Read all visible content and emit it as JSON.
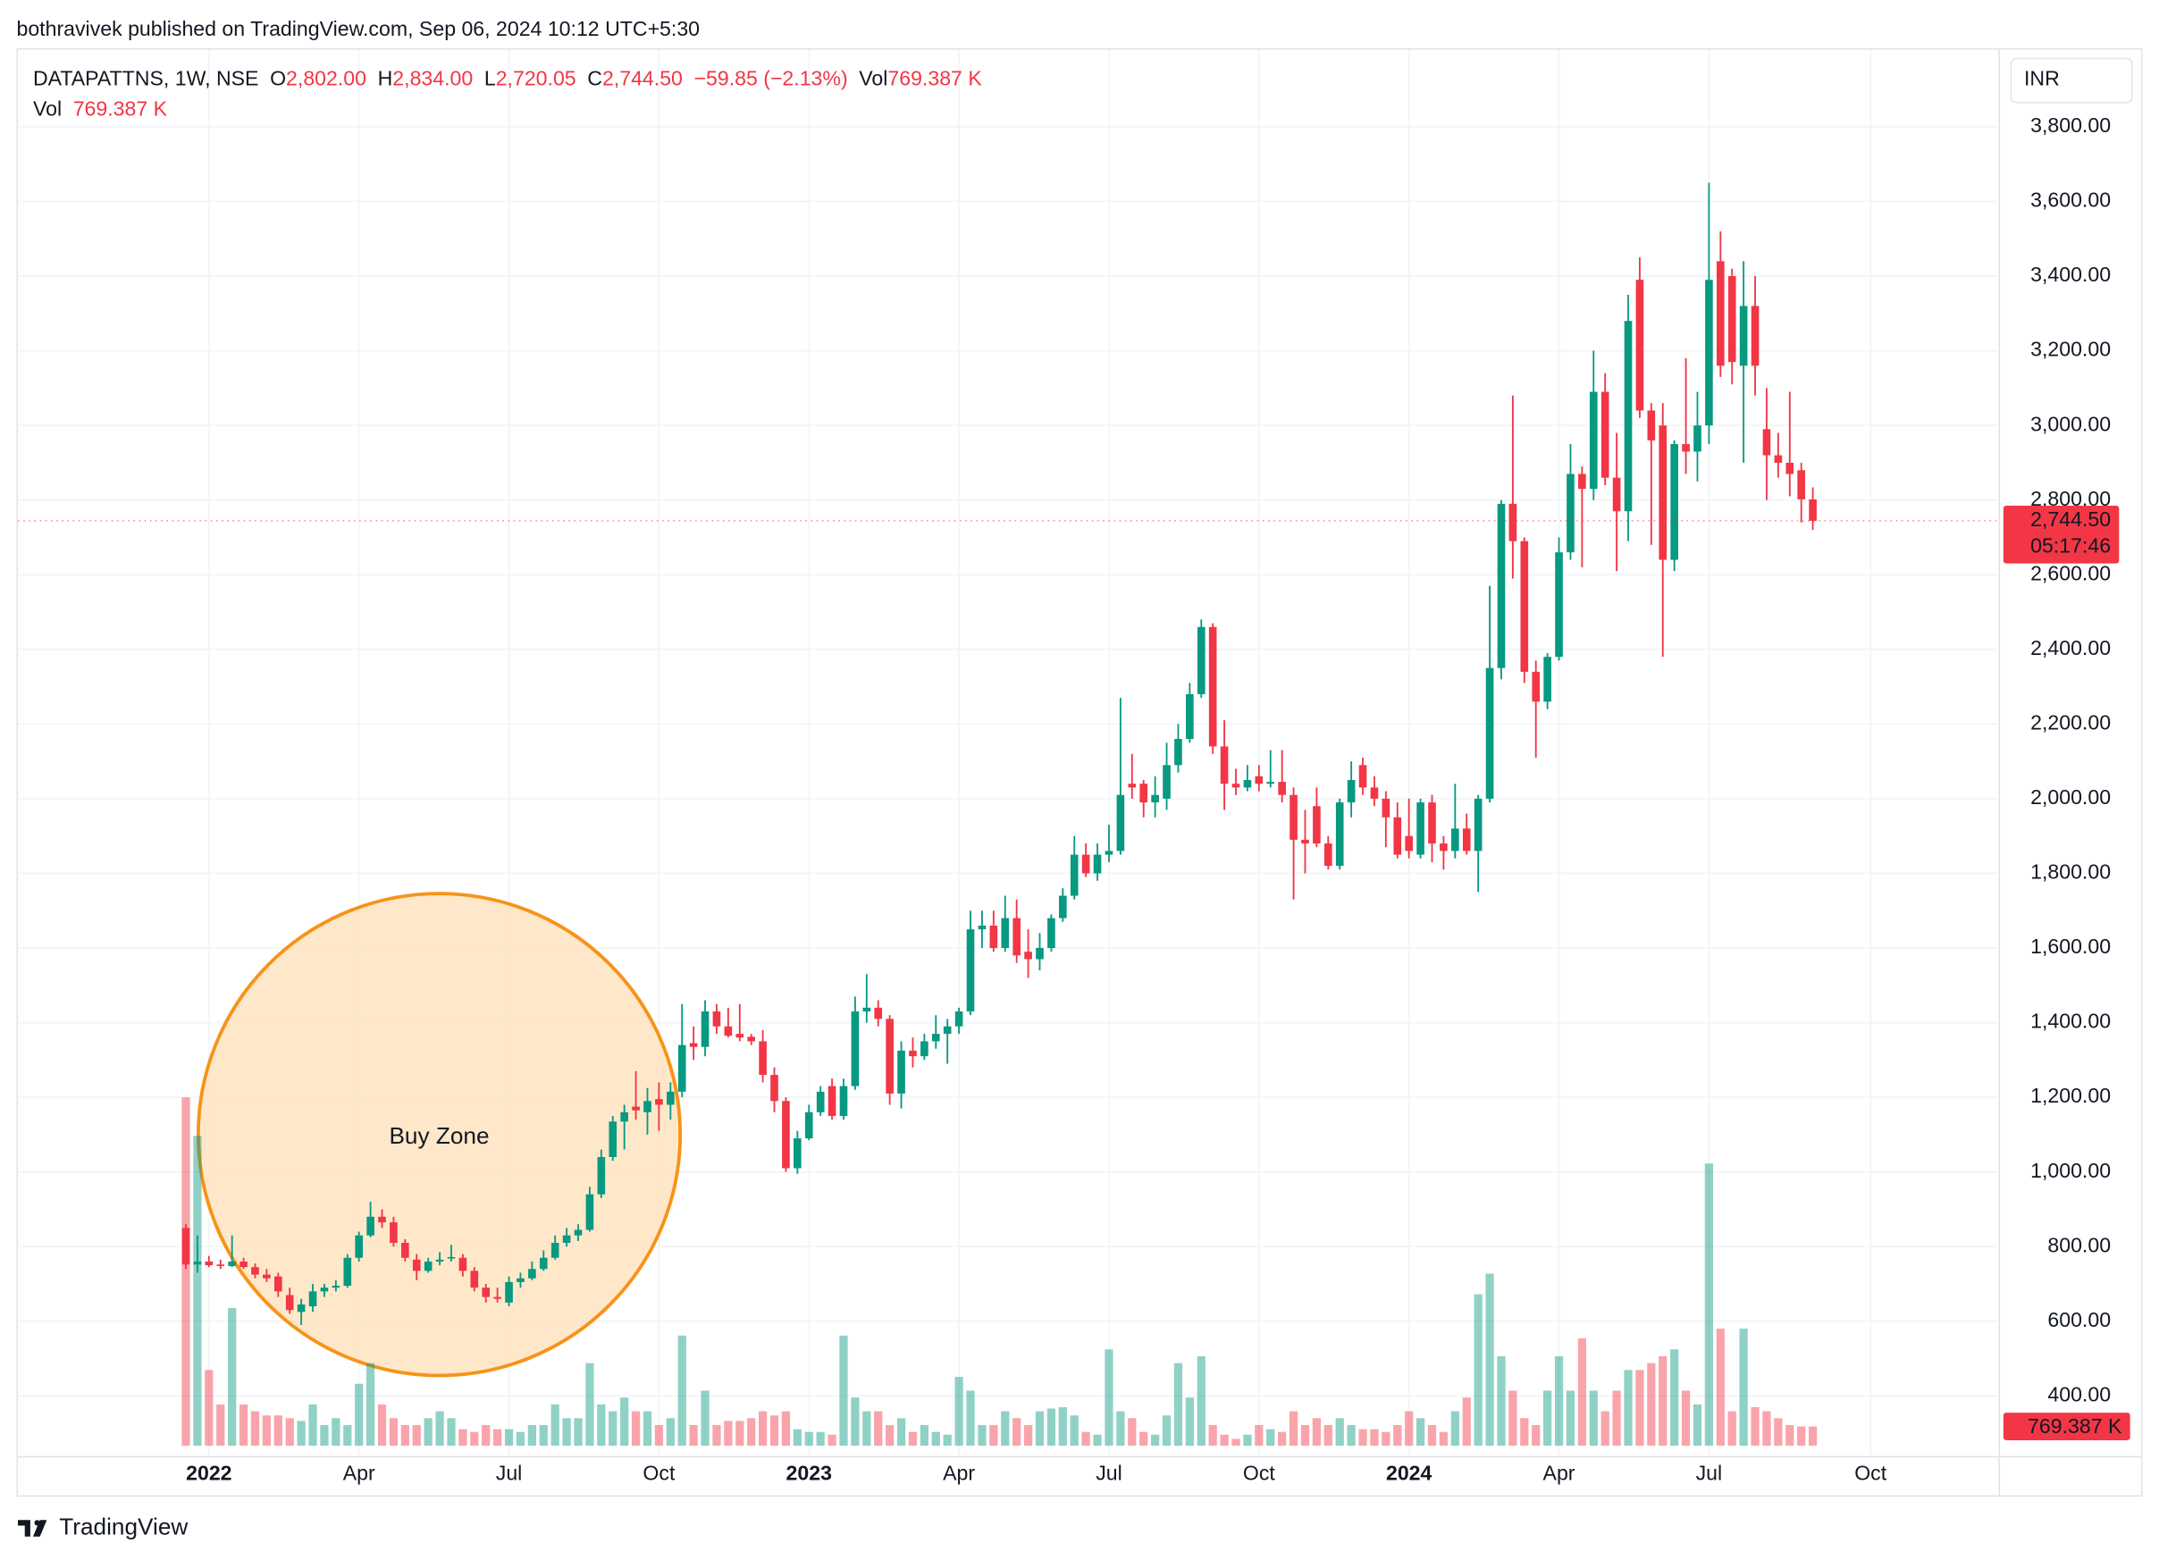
{
  "header": {
    "text": "bothravivek published on TradingView.com, Sep 06, 2024 10:12 UTC+5:30"
  },
  "legend": {
    "symbol": "DATAPATTNS, 1W, NSE",
    "fields": [
      {
        "key": "O",
        "text": "2,802.00"
      },
      {
        "key": "H",
        "text": "2,834.00"
      },
      {
        "key": "L",
        "text": "2,720.05"
      },
      {
        "key": "C",
        "text": "2,744.50"
      }
    ],
    "change": "−59.85 (−2.13%)",
    "volume_key": "Vol",
    "volume_text": "769.387 K"
  },
  "currency": "INR",
  "footer": {
    "brand": "TradingView"
  },
  "chart_data": {
    "type": "candlestick",
    "title": "DATAPATTNS, 1W, NSE",
    "annotation": "Buy Zone",
    "up_color": "#089981",
    "down_color": "#f23645",
    "annotation_color": "#f7931a",
    "grid": true,
    "ylim": [
      237,
      4007
    ],
    "yticks": [
      {
        "value": 400,
        "label": "400.00"
      },
      {
        "value": 600,
        "label": "600.00"
      },
      {
        "value": 800,
        "label": "800.00"
      },
      {
        "value": 1000,
        "label": "1,000.00"
      },
      {
        "value": 1200,
        "label": "1,200.00"
      },
      {
        "value": 1400,
        "label": "1,400.00"
      },
      {
        "value": 1600,
        "label": "1,600.00"
      },
      {
        "value": 1800,
        "label": "1,800.00"
      },
      {
        "value": 2000,
        "label": "2,000.00"
      },
      {
        "value": 2200,
        "label": "2,200.00"
      },
      {
        "value": 2400,
        "label": "2,400.00"
      },
      {
        "value": 2600,
        "label": "2,600.00"
      },
      {
        "value": 2800,
        "label": "2,800.00"
      },
      {
        "value": 3000,
        "label": "3,000.00"
      },
      {
        "value": 3200,
        "label": "3,200.00"
      },
      {
        "value": 3400,
        "label": "3,400.00"
      },
      {
        "value": 3600,
        "label": "3,600.00"
      },
      {
        "value": 3800,
        "label": "3,800.00"
      }
    ],
    "categories": [
      null,
      null,
      "2022",
      null,
      null,
      null,
      null,
      null,
      null,
      null,
      null,
      null,
      null,
      null,
      null,
      "Apr",
      null,
      null,
      null,
      null,
      null,
      null,
      null,
      null,
      null,
      null,
      null,
      null,
      "Jul",
      null,
      null,
      null,
      null,
      null,
      null,
      null,
      null,
      null,
      null,
      null,
      null,
      "Oct",
      null,
      null,
      null,
      null,
      null,
      null,
      null,
      null,
      null,
      null,
      null,
      null,
      "2023",
      null,
      null,
      null,
      null,
      null,
      null,
      null,
      null,
      null,
      null,
      null,
      null,
      "Apr",
      null,
      null,
      null,
      null,
      null,
      null,
      null,
      null,
      null,
      null,
      null,
      null,
      "Jul",
      null,
      null,
      null,
      null,
      null,
      null,
      null,
      null,
      null,
      null,
      null,
      null,
      "Oct",
      null,
      null,
      null,
      null,
      null,
      null,
      null,
      null,
      null,
      null,
      null,
      null,
      "2024",
      null,
      null,
      null,
      null,
      null,
      null,
      null,
      null,
      null,
      null,
      null,
      null,
      "Apr",
      null,
      null,
      null,
      null,
      null,
      null,
      null,
      null,
      null,
      null,
      null,
      null,
      "Jul",
      null,
      null,
      null,
      null,
      null,
      null,
      null,
      null,
      null,
      null,
      null,
      null,
      null,
      "Oct"
    ],
    "ohlc": [
      [
        850,
        860,
        740,
        752
      ],
      [
        752,
        830,
        730,
        760
      ],
      [
        760,
        775,
        745,
        750
      ],
      [
        752,
        765,
        740,
        748
      ],
      [
        748,
        830,
        745,
        760
      ],
      [
        760,
        770,
        740,
        745
      ],
      [
        745,
        755,
        715,
        725
      ],
      [
        725,
        740,
        705,
        715
      ],
      [
        720,
        730,
        665,
        680
      ],
      [
        670,
        690,
        620,
        630
      ],
      [
        625,
        660,
        590,
        645
      ],
      [
        640,
        700,
        625,
        680
      ],
      [
        680,
        700,
        665,
        690
      ],
      [
        690,
        710,
        680,
        695
      ],
      [
        695,
        780,
        690,
        770
      ],
      [
        770,
        840,
        760,
        830
      ],
      [
        830,
        920,
        825,
        880
      ],
      [
        880,
        900,
        850,
        865
      ],
      [
        865,
        880,
        800,
        810
      ],
      [
        810,
        820,
        760,
        770
      ],
      [
        765,
        780,
        710,
        735
      ],
      [
        735,
        770,
        730,
        760
      ],
      [
        760,
        785,
        750,
        765
      ],
      [
        768,
        805,
        760,
        772
      ],
      [
        770,
        780,
        720,
        735
      ],
      [
        735,
        745,
        680,
        690
      ],
      [
        690,
        700,
        650,
        665
      ],
      [
        665,
        690,
        650,
        660
      ],
      [
        650,
        720,
        640,
        705
      ],
      [
        705,
        730,
        690,
        715
      ],
      [
        715,
        760,
        710,
        740
      ],
      [
        740,
        790,
        735,
        770
      ],
      [
        770,
        830,
        765,
        810
      ],
      [
        810,
        850,
        800,
        830
      ],
      [
        830,
        860,
        815,
        845
      ],
      [
        845,
        960,
        840,
        940
      ],
      [
        940,
        1060,
        930,
        1040
      ],
      [
        1040,
        1150,
        1030,
        1135
      ],
      [
        1135,
        1180,
        1060,
        1160
      ],
      [
        1175,
        1270,
        1140,
        1165
      ],
      [
        1160,
        1225,
        1100,
        1190
      ],
      [
        1195,
        1240,
        1110,
        1180
      ],
      [
        1180,
        1240,
        1140,
        1215
      ],
      [
        1215,
        1450,
        1200,
        1340
      ],
      [
        1345,
        1390,
        1300,
        1335
      ],
      [
        1335,
        1460,
        1310,
        1430
      ],
      [
        1430,
        1450,
        1370,
        1390
      ],
      [
        1390,
        1440,
        1360,
        1365
      ],
      [
        1370,
        1450,
        1350,
        1360
      ],
      [
        1362,
        1370,
        1340,
        1350
      ],
      [
        1350,
        1380,
        1240,
        1260
      ],
      [
        1260,
        1280,
        1160,
        1190
      ],
      [
        1190,
        1200,
        1000,
        1010
      ],
      [
        1010,
        1110,
        995,
        1090
      ],
      [
        1090,
        1180,
        1085,
        1160
      ],
      [
        1160,
        1230,
        1150,
        1215
      ],
      [
        1230,
        1250,
        1140,
        1150
      ],
      [
        1150,
        1250,
        1140,
        1230
      ],
      [
        1230,
        1470,
        1220,
        1430
      ],
      [
        1430,
        1530,
        1400,
        1440
      ],
      [
        1440,
        1460,
        1390,
        1410
      ],
      [
        1410,
        1420,
        1180,
        1210
      ],
      [
        1210,
        1350,
        1170,
        1325
      ],
      [
        1325,
        1360,
        1280,
        1310
      ],
      [
        1310,
        1370,
        1300,
        1350
      ],
      [
        1350,
        1420,
        1330,
        1370
      ],
      [
        1370,
        1410,
        1290,
        1390
      ],
      [
        1390,
        1440,
        1370,
        1430
      ],
      [
        1430,
        1700,
        1420,
        1650
      ],
      [
        1650,
        1700,
        1600,
        1660
      ],
      [
        1660,
        1700,
        1590,
        1600
      ],
      [
        1600,
        1740,
        1590,
        1680
      ],
      [
        1680,
        1730,
        1560,
        1580
      ],
      [
        1590,
        1650,
        1520,
        1570
      ],
      [
        1570,
        1640,
        1540,
        1600
      ],
      [
        1600,
        1690,
        1590,
        1680
      ],
      [
        1680,
        1760,
        1670,
        1740
      ],
      [
        1740,
        1900,
        1730,
        1850
      ],
      [
        1850,
        1880,
        1790,
        1800
      ],
      [
        1800,
        1880,
        1780,
        1850
      ],
      [
        1850,
        1930,
        1830,
        1860
      ],
      [
        1860,
        2270,
        1850,
        2010
      ],
      [
        2040,
        2120,
        2000,
        2030
      ],
      [
        2040,
        2050,
        1950,
        1990
      ],
      [
        1990,
        2060,
        1950,
        2010
      ],
      [
        2000,
        2150,
        1970,
        2090
      ],
      [
        2090,
        2200,
        2070,
        2160
      ],
      [
        2160,
        2310,
        2150,
        2280
      ],
      [
        2280,
        2480,
        2270,
        2460
      ],
      [
        2460,
        2470,
        2120,
        2140
      ],
      [
        2140,
        2210,
        1970,
        2040
      ],
      [
        2040,
        2080,
        2010,
        2030
      ],
      [
        2030,
        2090,
        2020,
        2050
      ],
      [
        2060,
        2090,
        2020,
        2040
      ],
      [
        2040,
        2130,
        2030,
        2045
      ],
      [
        2045,
        2130,
        1990,
        2010
      ],
      [
        2010,
        2030,
        1730,
        1890
      ],
      [
        1890,
        1970,
        1800,
        1880
      ],
      [
        1980,
        2030,
        1870,
        1880
      ],
      [
        1880,
        1900,
        1810,
        1820
      ],
      [
        1820,
        2000,
        1810,
        1990
      ],
      [
        1990,
        2100,
        1950,
        2050
      ],
      [
        2090,
        2110,
        2010,
        2030
      ],
      [
        2030,
        2060,
        1980,
        2000
      ],
      [
        2000,
        2020,
        1870,
        1950
      ],
      [
        1950,
        1990,
        1840,
        1850
      ],
      [
        1900,
        2000,
        1840,
        1860
      ],
      [
        1850,
        2000,
        1840,
        1990
      ],
      [
        1990,
        2010,
        1830,
        1880
      ],
      [
        1880,
        1900,
        1810,
        1860
      ],
      [
        1860,
        2040,
        1840,
        1920
      ],
      [
        1920,
        1960,
        1850,
        1860
      ],
      [
        1860,
        2010,
        1750,
        2000
      ],
      [
        2000,
        2570,
        1990,
        2350
      ],
      [
        2350,
        2800,
        2320,
        2790
      ],
      [
        2790,
        3080,
        2590,
        2690
      ],
      [
        2690,
        2700,
        2310,
        2340
      ],
      [
        2340,
        2370,
        2110,
        2260
      ],
      [
        2260,
        2390,
        2240,
        2380
      ],
      [
        2380,
        2700,
        2370,
        2660
      ],
      [
        2660,
        2950,
        2640,
        2870
      ],
      [
        2870,
        2890,
        2620,
        2830
      ],
      [
        2830,
        3200,
        2800,
        3090
      ],
      [
        3090,
        3140,
        2840,
        2860
      ],
      [
        2860,
        2980,
        2610,
        2770
      ],
      [
        2770,
        3350,
        2690,
        3280
      ],
      [
        3390,
        3450,
        3020,
        3040
      ],
      [
        3040,
        3060,
        2680,
        2960
      ],
      [
        3000,
        3060,
        2380,
        2640
      ],
      [
        2640,
        2960,
        2610,
        2950
      ],
      [
        2950,
        3180,
        2870,
        2930
      ],
      [
        2930,
        3090,
        2850,
        3000
      ],
      [
        3000,
        3650,
        2950,
        3390
      ],
      [
        3440,
        3520,
        3130,
        3160
      ],
      [
        3400,
        3420,
        3110,
        3170
      ],
      [
        3160,
        3440,
        2900,
        3320
      ],
      [
        3320,
        3400,
        3080,
        3160
      ],
      [
        2990,
        3100,
        2800,
        2920
      ],
      [
        2920,
        2980,
        2860,
        2900
      ],
      [
        2900,
        3090,
        2810,
        2870
      ],
      [
        2880,
        2900,
        2740,
        2802
      ],
      [
        2802,
        2834,
        2720.05,
        2744.5
      ],
      null,
      null,
      null,
      null,
      null
    ],
    "volume": {
      "name": "Vol",
      "values": [
        13915000,
        12375000,
        3025000,
        1650000,
        5500000,
        1650000,
        1375000,
        1210000,
        1210000,
        1100000,
        990000,
        1650000,
        825000,
        1100000,
        825000,
        2475000,
        3300000,
        1650000,
        1100000,
        825000,
        825000,
        1100000,
        1375000,
        1100000,
        660000,
        550000,
        825000,
        660000,
        660000,
        550000,
        825000,
        825000,
        1650000,
        1100000,
        1100000,
        3300000,
        1650000,
        1375000,
        1925000,
        1375000,
        1375000,
        825000,
        1100000,
        4400000,
        825000,
        2200000,
        825000,
        990000,
        990000,
        1100000,
        1375000,
        1210000,
        1375000,
        660000,
        550000,
        550000,
        440000,
        4400000,
        1925000,
        1375000,
        1375000,
        825000,
        1100000,
        550000,
        825000,
        550000,
        440000,
        2750000,
        2200000,
        825000,
        825000,
        1375000,
        1100000,
        825000,
        1375000,
        1485000,
        1540000,
        1210000,
        550000,
        440000,
        3850000,
        1375000,
        1100000,
        550000,
        440000,
        1210000,
        3300000,
        1925000,
        3575000,
        825000,
        440000,
        275000,
        440000,
        825000,
        660000,
        550000,
        1375000,
        825000,
        1100000,
        825000,
        1100000,
        825000,
        660000,
        660000,
        550000,
        825000,
        1375000,
        1100000,
        825000,
        550000,
        1375000,
        1925000,
        6050000,
        6875000,
        3575000,
        2200000,
        1100000,
        825000,
        2200000,
        3575000,
        2200000,
        4290000,
        2200000,
        1375000,
        2200000,
        3025000,
        3025000,
        3300000,
        3575000,
        3850000,
        2200000,
        1650000,
        11275000,
        4675000,
        1375000,
        4675000,
        1540000,
        1375000,
        1100000,
        825000,
        770000,
        769387,
        null,
        null,
        null,
        null,
        null
      ]
    },
    "price_tag": {
      "value": 2744.5,
      "label": "2,744.50",
      "countdown": "05:17:46"
    },
    "volume_tag": {
      "value": 769387,
      "label": "769.387 K"
    }
  }
}
